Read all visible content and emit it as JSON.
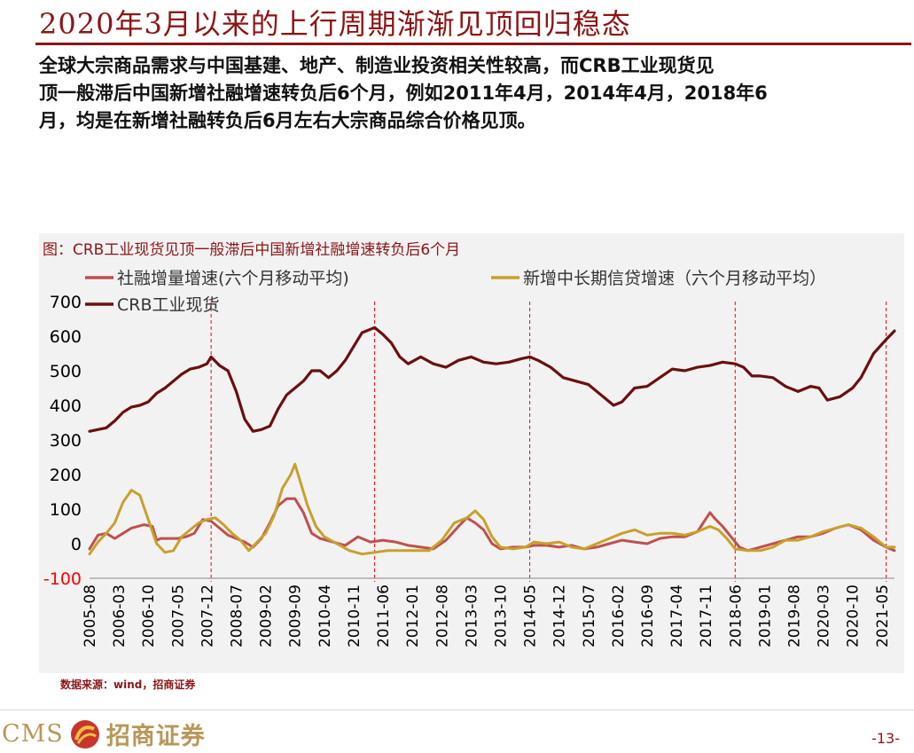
{
  "header": {
    "title": "2020年3月以来的上行周期渐渐见顶回归稳态",
    "intro_lines": [
      "全球大宗商品需求与中国基建、地产、制造业投资相关性较高，而CRB工业现货见",
      "顶一般滞后中国新增社融增速转负后6个月，例如2011年4月，2014年4月，2018年6",
      "月，均是在新增社融转负后6月左右大宗商品综合价格见顶。"
    ]
  },
  "chart_data": {
    "type": "line",
    "title": "图：CRB工业现货见顶一般滞后中国新增社融增速转负后6个月",
    "xlabel": "",
    "ylabel": "",
    "ylim": [
      -100,
      700
    ],
    "yticks": [
      -100,
      0,
      100,
      200,
      300,
      400,
      500,
      600,
      700
    ],
    "x_range": [
      "2005-08",
      "2021-08"
    ],
    "x_ticks": [
      "2005-08",
      "2006-03",
      "2006-10",
      "2007-05",
      "2007-12",
      "2008-07",
      "2009-02",
      "2009-09",
      "2010-04",
      "2010-11",
      "2011-06",
      "2012-01",
      "2012-08",
      "2013-03",
      "2013-10",
      "2014-05",
      "2014-12",
      "2015-07",
      "2016-02",
      "2016-09",
      "2017-04",
      "2017-11",
      "2018-06",
      "2019-01",
      "2019-08",
      "2020-03",
      "2020-10",
      "2021-05"
    ],
    "reference_lines": [
      "2008-01",
      "2011-04",
      "2014-05",
      "2018-06",
      "2021-06"
    ],
    "grid": false,
    "legend_position": "top-left",
    "colors": {
      "social_financing": "#c0504d",
      "medium_long_loans": "#c8a02c",
      "crb": "#6b0f0f",
      "negative_axis_label": "#ff0000",
      "reference_line": "#ff0000"
    },
    "series": [
      {
        "key": "social_financing",
        "name": "社融增量增速(六个月移动平均)",
        "points": [
          [
            "2005-08",
            -15
          ],
          [
            "2005-10",
            25
          ],
          [
            "2005-12",
            30
          ],
          [
            "2006-02",
            15
          ],
          [
            "2006-04",
            30
          ],
          [
            "2006-06",
            45
          ],
          [
            "2006-09",
            55
          ],
          [
            "2006-11",
            50
          ],
          [
            "2006-12",
            10
          ],
          [
            "2007-01",
            15
          ],
          [
            "2007-03",
            15
          ],
          [
            "2007-05",
            15
          ],
          [
            "2007-07",
            20
          ],
          [
            "2007-09",
            30
          ],
          [
            "2007-11",
            70
          ],
          [
            "2008-01",
            65
          ],
          [
            "2008-03",
            45
          ],
          [
            "2008-05",
            25
          ],
          [
            "2008-07",
            15
          ],
          [
            "2008-09",
            5
          ],
          [
            "2008-11",
            -10
          ],
          [
            "2009-01",
            15
          ],
          [
            "2009-03",
            60
          ],
          [
            "2009-05",
            110
          ],
          [
            "2009-07",
            130
          ],
          [
            "2009-09",
            130
          ],
          [
            "2009-11",
            90
          ],
          [
            "2010-01",
            30
          ],
          [
            "2010-03",
            15
          ],
          [
            "2010-06",
            5
          ],
          [
            "2010-09",
            -5
          ],
          [
            "2010-12",
            20
          ],
          [
            "2011-03",
            5
          ],
          [
            "2011-06",
            10
          ],
          [
            "2011-09",
            5
          ],
          [
            "2011-12",
            -5
          ],
          [
            "2012-03",
            -10
          ],
          [
            "2012-06",
            -15
          ],
          [
            "2012-09",
            10
          ],
          [
            "2012-12",
            50
          ],
          [
            "2013-02",
            75
          ],
          [
            "2013-04",
            60
          ],
          [
            "2013-06",
            40
          ],
          [
            "2013-08",
            0
          ],
          [
            "2013-10",
            -15
          ],
          [
            "2014-01",
            -10
          ],
          [
            "2014-04",
            -10
          ],
          [
            "2014-06",
            -5
          ],
          [
            "2014-09",
            -5
          ],
          [
            "2014-12",
            -10
          ],
          [
            "2015-03",
            -5
          ],
          [
            "2015-06",
            -15
          ],
          [
            "2015-09",
            -10
          ],
          [
            "2015-12",
            0
          ],
          [
            "2016-03",
            10
          ],
          [
            "2016-06",
            5
          ],
          [
            "2016-09",
            0
          ],
          [
            "2016-12",
            15
          ],
          [
            "2017-03",
            20
          ],
          [
            "2017-06",
            20
          ],
          [
            "2017-09",
            35
          ],
          [
            "2017-12",
            90
          ],
          [
            "2018-01",
            75
          ],
          [
            "2018-03",
            50
          ],
          [
            "2018-05",
            20
          ],
          [
            "2018-07",
            -10
          ],
          [
            "2018-09",
            -20
          ],
          [
            "2018-12",
            -10
          ],
          [
            "2019-03",
            0
          ],
          [
            "2019-06",
            10
          ],
          [
            "2019-09",
            20
          ],
          [
            "2019-12",
            20
          ],
          [
            "2020-03",
            30
          ],
          [
            "2020-06",
            45
          ],
          [
            "2020-09",
            55
          ],
          [
            "2020-12",
            40
          ],
          [
            "2021-03",
            10
          ],
          [
            "2021-06",
            -10
          ],
          [
            "2021-08",
            -20
          ]
        ]
      },
      {
        "key": "medium_long_loans",
        "name": "新增中长期信贷增速（六个月移动平均）",
        "points": [
          [
            "2005-08",
            -30
          ],
          [
            "2005-10",
            5
          ],
          [
            "2005-12",
            30
          ],
          [
            "2006-02",
            60
          ],
          [
            "2006-04",
            120
          ],
          [
            "2006-06",
            155
          ],
          [
            "2006-08",
            140
          ],
          [
            "2006-10",
            70
          ],
          [
            "2006-12",
            0
          ],
          [
            "2007-02",
            -25
          ],
          [
            "2007-04",
            -20
          ],
          [
            "2007-06",
            20
          ],
          [
            "2007-08",
            40
          ],
          [
            "2007-10",
            60
          ],
          [
            "2007-12",
            70
          ],
          [
            "2008-02",
            75
          ],
          [
            "2008-04",
            55
          ],
          [
            "2008-06",
            30
          ],
          [
            "2008-08",
            10
          ],
          [
            "2008-10",
            -20
          ],
          [
            "2008-12",
            5
          ],
          [
            "2009-02",
            30
          ],
          [
            "2009-04",
            80
          ],
          [
            "2009-06",
            160
          ],
          [
            "2009-08",
            200
          ],
          [
            "2009-09",
            230
          ],
          [
            "2009-10",
            190
          ],
          [
            "2009-12",
            110
          ],
          [
            "2010-02",
            50
          ],
          [
            "2010-04",
            20
          ],
          [
            "2010-07",
            0
          ],
          [
            "2010-10",
            -20
          ],
          [
            "2011-01",
            -30
          ],
          [
            "2011-04",
            -25
          ],
          [
            "2011-07",
            -20
          ],
          [
            "2011-10",
            -20
          ],
          [
            "2012-01",
            -20
          ],
          [
            "2012-05",
            -20
          ],
          [
            "2012-08",
            10
          ],
          [
            "2012-11",
            60
          ],
          [
            "2013-02",
            75
          ],
          [
            "2013-04",
            95
          ],
          [
            "2013-06",
            70
          ],
          [
            "2013-08",
            20
          ],
          [
            "2013-10",
            -10
          ],
          [
            "2014-01",
            -15
          ],
          [
            "2014-04",
            -10
          ],
          [
            "2014-06",
            5
          ],
          [
            "2014-09",
            0
          ],
          [
            "2014-12",
            5
          ],
          [
            "2015-03",
            -10
          ],
          [
            "2015-06",
            -15
          ],
          [
            "2015-09",
            0
          ],
          [
            "2015-12",
            15
          ],
          [
            "2016-03",
            30
          ],
          [
            "2016-06",
            40
          ],
          [
            "2016-09",
            25
          ],
          [
            "2016-12",
            30
          ],
          [
            "2017-03",
            30
          ],
          [
            "2017-06",
            25
          ],
          [
            "2017-09",
            35
          ],
          [
            "2017-12",
            50
          ],
          [
            "2018-02",
            40
          ],
          [
            "2018-04",
            15
          ],
          [
            "2018-06",
            -15
          ],
          [
            "2018-09",
            -20
          ],
          [
            "2018-12",
            -20
          ],
          [
            "2019-03",
            -10
          ],
          [
            "2019-06",
            10
          ],
          [
            "2019-09",
            10
          ],
          [
            "2019-12",
            20
          ],
          [
            "2020-03",
            35
          ],
          [
            "2020-06",
            45
          ],
          [
            "2020-09",
            55
          ],
          [
            "2020-12",
            45
          ],
          [
            "2021-03",
            20
          ],
          [
            "2021-06",
            -10
          ],
          [
            "2021-08",
            -10
          ]
        ]
      },
      {
        "key": "crb",
        "name": "CRB工业现货",
        "points": [
          [
            "2005-08",
            325
          ],
          [
            "2005-10",
            330
          ],
          [
            "2005-12",
            335
          ],
          [
            "2006-02",
            355
          ],
          [
            "2006-04",
            380
          ],
          [
            "2006-06",
            395
          ],
          [
            "2006-08",
            400
          ],
          [
            "2006-10",
            410
          ],
          [
            "2006-12",
            435
          ],
          [
            "2007-02",
            450
          ],
          [
            "2007-04",
            470
          ],
          [
            "2007-06",
            490
          ],
          [
            "2007-08",
            505
          ],
          [
            "2007-10",
            510
          ],
          [
            "2007-12",
            520
          ],
          [
            "2008-01",
            540
          ],
          [
            "2008-03",
            515
          ],
          [
            "2008-05",
            500
          ],
          [
            "2008-07",
            440
          ],
          [
            "2008-09",
            360
          ],
          [
            "2008-11",
            325
          ],
          [
            "2009-01",
            330
          ],
          [
            "2009-03",
            340
          ],
          [
            "2009-05",
            390
          ],
          [
            "2009-07",
            430
          ],
          [
            "2009-09",
            450
          ],
          [
            "2009-11",
            470
          ],
          [
            "2010-01",
            500
          ],
          [
            "2010-03",
            500
          ],
          [
            "2010-05",
            480
          ],
          [
            "2010-07",
            500
          ],
          [
            "2010-09",
            530
          ],
          [
            "2010-11",
            570
          ],
          [
            "2011-01",
            610
          ],
          [
            "2011-04",
            625
          ],
          [
            "2011-06",
            605
          ],
          [
            "2011-08",
            580
          ],
          [
            "2011-10",
            540
          ],
          [
            "2011-12",
            520
          ],
          [
            "2012-03",
            540
          ],
          [
            "2012-06",
            520
          ],
          [
            "2012-09",
            510
          ],
          [
            "2012-12",
            530
          ],
          [
            "2013-03",
            540
          ],
          [
            "2013-06",
            525
          ],
          [
            "2013-09",
            520
          ],
          [
            "2013-12",
            525
          ],
          [
            "2014-03",
            535
          ],
          [
            "2014-05",
            540
          ],
          [
            "2014-07",
            530
          ],
          [
            "2014-10",
            510
          ],
          [
            "2015-01",
            480
          ],
          [
            "2015-04",
            470
          ],
          [
            "2015-07",
            460
          ],
          [
            "2015-10",
            430
          ],
          [
            "2016-01",
            400
          ],
          [
            "2016-03",
            410
          ],
          [
            "2016-06",
            450
          ],
          [
            "2016-09",
            455
          ],
          [
            "2016-12",
            480
          ],
          [
            "2017-03",
            505
          ],
          [
            "2017-06",
            500
          ],
          [
            "2017-09",
            510
          ],
          [
            "2017-12",
            515
          ],
          [
            "2018-03",
            525
          ],
          [
            "2018-06",
            520
          ],
          [
            "2018-08",
            510
          ],
          [
            "2018-10",
            485
          ],
          [
            "2018-12",
            485
          ],
          [
            "2019-03",
            480
          ],
          [
            "2019-06",
            455
          ],
          [
            "2019-09",
            440
          ],
          [
            "2019-12",
            455
          ],
          [
            "2020-02",
            450
          ],
          [
            "2020-04",
            415
          ],
          [
            "2020-07",
            425
          ],
          [
            "2020-10",
            450
          ],
          [
            "2020-12",
            480
          ],
          [
            "2021-03",
            550
          ],
          [
            "2021-06",
            590
          ],
          [
            "2021-08",
            615
          ]
        ]
      }
    ]
  },
  "source": "数据来源：wind，招商证券",
  "footer": {
    "logo_text": "CMS",
    "logo_cn": "招商证券",
    "page_number": "-13-"
  }
}
